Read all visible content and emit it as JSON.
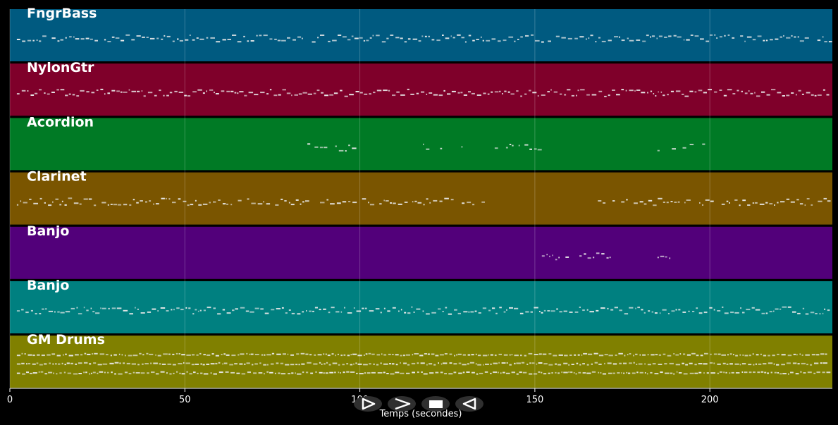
{
  "chart_data": {
    "type": "piano-roll",
    "xlabel": "Temps (secondes)",
    "xlim": [
      0,
      235
    ],
    "x_ticks": [
      0,
      50,
      100,
      150,
      200
    ],
    "grid": true,
    "tracks": [
      {
        "name": "FngrBass",
        "color": "#005a80",
        "density": 0.95,
        "rows": 1,
        "segments": [
          [
            2,
            234
          ]
        ]
      },
      {
        "name": "NylonGtr",
        "color": "#7f002a",
        "density": 1.0,
        "rows": 1,
        "segments": [
          [
            2,
            234
          ]
        ]
      },
      {
        "name": "Acordion",
        "color": "#007a25",
        "density": 0.5,
        "rows": 1,
        "segments": [
          [
            85,
            99
          ],
          [
            118,
            133
          ],
          [
            135,
            152
          ],
          [
            185,
            199
          ]
        ]
      },
      {
        "name": "Clarinet",
        "color": "#7a5500",
        "density": 0.9,
        "rows": 1,
        "segments": [
          [
            2,
            135
          ],
          [
            168,
            234
          ]
        ]
      },
      {
        "name": "Banjo",
        "color": "#52007a",
        "density": 0.8,
        "rows": 1,
        "segments": [
          [
            152,
            173
          ],
          [
            185,
            189
          ]
        ]
      },
      {
        "name": "Banjo",
        "color": "#008080",
        "density": 1.0,
        "rows": 1,
        "segments": [
          [
            2,
            234
          ]
        ]
      },
      {
        "name": "GM Drums",
        "color": "#808000",
        "density": 1.0,
        "rows": 3,
        "segments": [
          [
            2,
            234
          ]
        ]
      }
    ]
  },
  "controls": {
    "play_icon": "play-icon",
    "forward_icon": "forward-icon",
    "stop_icon": "stop-icon",
    "rewind_icon": "rewind-icon"
  }
}
